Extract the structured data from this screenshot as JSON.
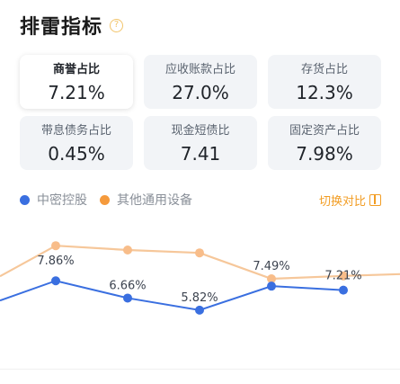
{
  "header": {
    "title": "排雷指标",
    "help_icon": "question-icon"
  },
  "metrics": [
    {
      "label": "商誉占比",
      "value": "7.21%",
      "active": true
    },
    {
      "label": "应收账款占比",
      "value": "27.0%",
      "active": false
    },
    {
      "label": "存货占比",
      "value": "12.3%",
      "active": false
    },
    {
      "label": "带息债务占比",
      "value": "0.45%",
      "active": false
    },
    {
      "label": "现金短债比",
      "value": "7.41",
      "active": false
    },
    {
      "label": "固定资产占比",
      "value": "7.98%",
      "active": false
    }
  ],
  "legend": {
    "series_a": {
      "label": "中密控股",
      "color": "#3a6fe0"
    },
    "series_b": {
      "label": "其他通用设备",
      "color": "#f59a3c"
    },
    "switch_label": "切换对比",
    "switch_icon": "switch-icon"
  },
  "chart_data": {
    "type": "line",
    "series": [
      {
        "name": "中密控股",
        "color": "#3a6fe0",
        "values": [
          7.86,
          6.66,
          5.82,
          7.49,
          7.21
        ],
        "labels": [
          "7.86%",
          "6.66%",
          "5.82%",
          "7.49%",
          "7.21%"
        ]
      },
      {
        "name": "其他通用设备",
        "color": "#f59a3c",
        "values": [
          10.3,
          10.0,
          9.8,
          8.0,
          8.2
        ]
      }
    ]
  }
}
